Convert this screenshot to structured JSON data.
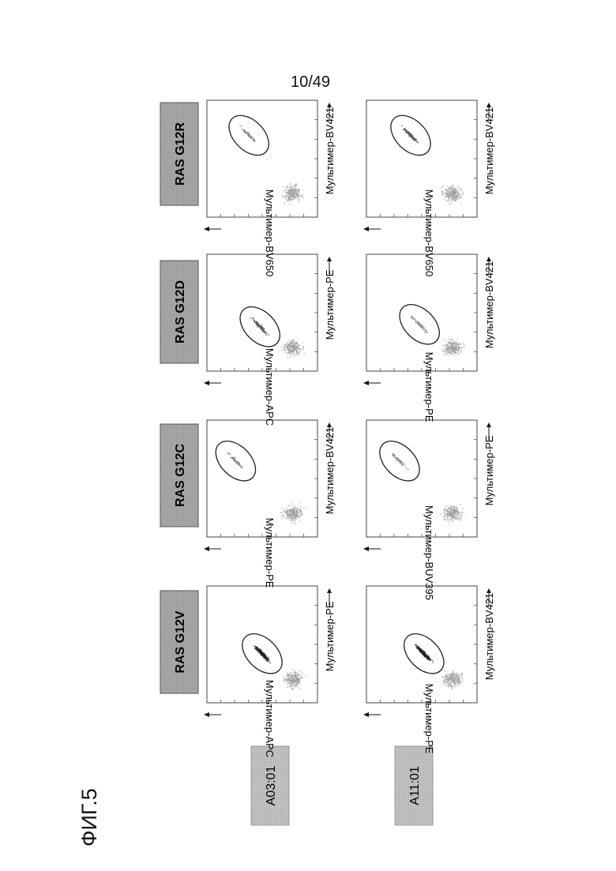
{
  "page_number": "10/49",
  "figure_label": "ФИГ.5",
  "column_headers": [
    "RAS G12V",
    "RAS G12C",
    "RAS G12D",
    "RAS G12R"
  ],
  "row_labels": [
    "A03:01",
    "A11:01"
  ],
  "panels": [
    {
      "row": "A03:01",
      "column": "RAS G12V",
      "x_axis_label": "Мультимер-PE",
      "y_axis_label": "Мультимер-APC"
    },
    {
      "row": "A03:01",
      "column": "RAS G12C",
      "x_axis_label": "Мультимер-BV421",
      "y_axis_label": "Мультимер-PE"
    },
    {
      "row": "A03:01",
      "column": "RAS G12D",
      "x_axis_label": "Мультимер-PE",
      "y_axis_label": "Мультимер-APC"
    },
    {
      "row": "A03:01",
      "column": "RAS G12R",
      "x_axis_label": "Мультимер-BV421",
      "y_axis_label": "Мультимер-BV650"
    },
    {
      "row": "A11:01",
      "column": "RAS G12V",
      "x_axis_label": "Мультимер-BV421",
      "y_axis_label": "Мультимер-PE"
    },
    {
      "row": "A11:01",
      "column": "RAS G12C",
      "x_axis_label": "Мультимер-PE",
      "y_axis_label": "Мультимер-BUV395"
    },
    {
      "row": "A11:01",
      "column": "RAS G12D",
      "x_axis_label": "Мультимер-BV421",
      "y_axis_label": "Мультимер-PE"
    },
    {
      "row": "A11:01",
      "column": "RAS G12R",
      "x_axis_label": "Мультимер-BV421",
      "y_axis_label": "Мультимер-BV650"
    }
  ]
}
